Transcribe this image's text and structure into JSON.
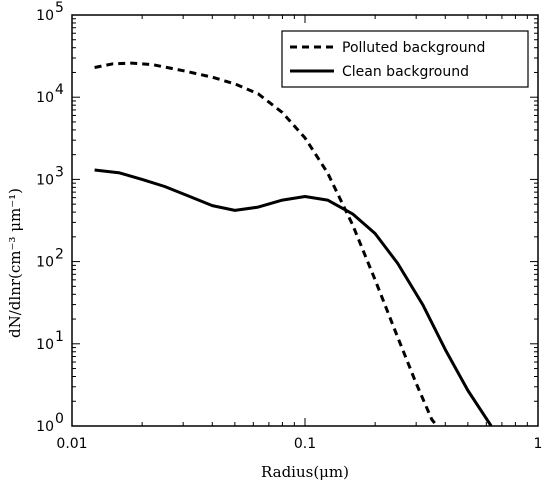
{
  "chart_data": {
    "type": "line",
    "xlabel": "Radius(μm)",
    "ylabel": "dN/dlnr(cm⁻³ μm⁻¹)",
    "xscale": "log",
    "yscale": "log",
    "xlim": [
      0.01,
      1
    ],
    "ylim": [
      1,
      100000
    ],
    "x_ticks": [
      {
        "value": 0.01,
        "label": "0.01"
      },
      {
        "value": 0.1,
        "label": "0.1"
      },
      {
        "value": 1,
        "label": "1"
      }
    ],
    "y_ticks": [
      {
        "value": 1,
        "base": "10",
        "exp": "0"
      },
      {
        "value": 10,
        "base": "10",
        "exp": "1"
      },
      {
        "value": 100,
        "base": "10",
        "exp": "2"
      },
      {
        "value": 1000,
        "base": "10",
        "exp": "3"
      },
      {
        "value": 10000,
        "base": "10",
        "exp": "4"
      },
      {
        "value": 100000,
        "base": "10",
        "exp": "5"
      }
    ],
    "legend_position": "top-right",
    "grid": false,
    "series": [
      {
        "name": "Polluted background",
        "style": "dashed",
        "color": "#000000",
        "x": [
          0.0125,
          0.015,
          0.018,
          0.022,
          0.03,
          0.04,
          0.05,
          0.063,
          0.08,
          0.1,
          0.125,
          0.16,
          0.2,
          0.25,
          0.3,
          0.35,
          0.4
        ],
        "y": [
          23000,
          25500,
          26000,
          25000,
          21000,
          17500,
          14500,
          11000,
          6500,
          3200,
          1200,
          280,
          60,
          12,
          3.3,
          1.2,
          0.75
        ]
      },
      {
        "name": "Clean background",
        "style": "solid",
        "color": "#000000",
        "x": [
          0.0125,
          0.016,
          0.02,
          0.025,
          0.032,
          0.04,
          0.05,
          0.063,
          0.08,
          0.1,
          0.125,
          0.16,
          0.2,
          0.25,
          0.32,
          0.4,
          0.5,
          0.63
        ],
        "y": [
          1300,
          1200,
          1000,
          820,
          620,
          480,
          420,
          460,
          560,
          620,
          560,
          380,
          220,
          95,
          30,
          8.5,
          2.7,
          1.0
        ]
      }
    ]
  }
}
